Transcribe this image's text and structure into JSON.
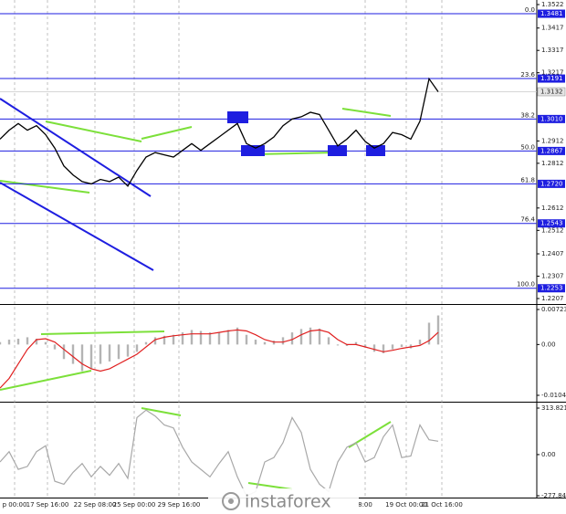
{
  "chart_data": [
    {
      "type": "line",
      "color": "#000000",
      "values": [
        1.292,
        1.296,
        1.299,
        1.296,
        1.298,
        1.294,
        1.288,
        1.28,
        1.276,
        1.273,
        1.272,
        1.274,
        1.273,
        1.275,
        1.271,
        1.278,
        1.284,
        1.286,
        1.285,
        1.284,
        1.287,
        1.29,
        1.287,
        1.29,
        1.293,
        1.296,
        1.299,
        1.29,
        1.288,
        1.29,
        1.293,
        1.298,
        {
          "value": 1.301,
          "label": "1.3010"
        },
        1.302,
        1.304,
        1.303,
        1.296,
        1.289,
        1.292,
        1.296,
        1.291,
        1.288,
        1.29,
        1.295,
        1.294,
        1.292,
        {
          "value": 1.3,
          "label": "1.3000"
        },
        1.319,
        1.3132
      ],
      "xlim": [
        0,
        58.8
      ],
      "xticks": [
        {
          "value": 1.6,
          "label": "p 00:00"
        },
        {
          "value": 5.2,
          "label": "17 Sep 16:00"
        },
        {
          "value": 10.4,
          "label": "22 Sep 08:00"
        },
        {
          "value": 14.7,
          "label": "25 Sep 00:00"
        },
        {
          "value": 19.6,
          "label": "29 Sep 16:00"
        },
        {
          "value": 40.0,
          "label": "8:00"
        },
        {
          "value": 44.5,
          "label": "19 Oct 00:00"
        },
        {
          "value": 48.4,
          "label": "21 Oct 16:00"
        }
      ],
      "ylim": [
        1.2207,
        1.3522
      ],
      "yticks": [
        1.3522,
        1.3417,
        1.3317,
        1.3217,
        1.2912,
        1.2812,
        1.2612,
        1.2512,
        1.2407,
        1.2307,
        1.2207
      ],
      "last_price": 1.3132,
      "levels": [
        {
          "ratio": "0.0",
          "price": 1.3481
        },
        {
          "ratio": "23.6",
          "price": 1.3191
        },
        {
          "ratio": "38.2",
          "price": {
            "value": 1.301,
            "label": "1.3010"
          }
        },
        {
          "ratio": "50.0",
          "price": 1.2867
        },
        {
          "ratio": "61.8",
          "price": {
            "value": 1.272,
            "label": "1.2720"
          }
        },
        {
          "ratio": "76.4",
          "price": 1.2543
        },
        {
          "ratio": "100.0",
          "price": 1.2253
        }
      ],
      "level_color": "#1e1ee0"
    },
    {
      "type": "bar",
      "color": "#b4b4b4",
      "values": [
        0.0005,
        0.001,
        0.0012,
        0.0015,
        0.0012,
        0.0005,
        -0.001,
        -0.003,
        -0.004,
        -0.0055,
        -0.005,
        -0.004,
        -0.0035,
        -0.003,
        -0.0025,
        -0.0015,
        0.0005,
        0.0015,
        0.0018,
        0.002,
        0.0025,
        0.003,
        0.0028,
        0.0025,
        0.0025,
        0.003,
        0.0035,
        0.002,
        0.001,
        0.0005,
        0.0008,
        0.0015,
        0.0025,
        0.0032,
        0.0035,
        0.0033,
        0.0015,
        -0.0002,
        -0.0003,
        0.0005,
        -0.0005,
        -0.0015,
        -0.0018,
        -0.001,
        -0.0005,
        -0.0008,
        0.001,
        0.0045,
        0.006
      ],
      "signal_color": "#e02020",
      "signal": [
        -0.009,
        -0.007,
        -0.004,
        -0.001,
        0.001,
        0.0012,
        0.0005,
        -0.001,
        -0.0025,
        -0.004,
        -0.005,
        -0.0055,
        -0.005,
        -0.004,
        -0.003,
        -0.002,
        -0.0005,
        0.001,
        0.0015,
        0.0018,
        0.002,
        0.0022,
        0.0022,
        0.0022,
        0.0025,
        0.0028,
        0.003,
        0.0028,
        0.002,
        0.001,
        0.0005,
        0.0005,
        0.001,
        0.002,
        0.0028,
        0.003,
        0.0025,
        0.001,
        0,
        0,
        -0.0005,
        -0.001,
        -0.0015,
        -0.0012,
        -0.0008,
        -0.0005,
        -0.0002,
        0.0008,
        0.0025
      ],
      "ylim": [
        -0.01049,
        0.00723
      ],
      "yticks": [
        0.00723,
        {
          "value": 0,
          "label": "0.00"
        },
        -0.01049
      ]
    },
    {
      "type": "line",
      "color": "#a8a8a8",
      "values": [
        -50,
        20,
        -100,
        -80,
        20,
        60,
        -180,
        -200,
        -120,
        -60,
        -150,
        -80,
        -140,
        -60,
        -160,
        250,
        300,
        260,
        200,
        180,
        50,
        -50,
        -100,
        -150,
        -60,
        20,
        -150,
        -280,
        -250,
        -50,
        -20,
        80,
        250,
        150,
        -100,
        -200,
        -250,
        -50,
        50,
        80,
        -50,
        -20,
        120,
        200,
        -20,
        -10,
        200,
        100,
        90
      ],
      "ylim": [
        -277.844,
        313.8212
      ],
      "yticks": [
        313.8212,
        {
          "value": 0,
          "label": "0.00"
        },
        {
          "value": -277.844,
          "label": "-277.8440"
        }
      ]
    }
  ],
  "watermark": "instaforex"
}
